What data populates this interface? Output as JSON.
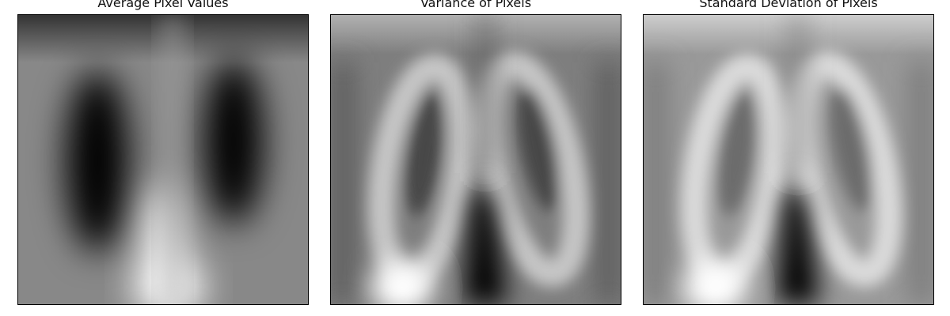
{
  "chart_data": [
    {
      "type": "heatmap",
      "title": "Average Pixel Values",
      "xlabel": "",
      "ylabel": "",
      "colormap": "gray",
      "axes_visible": false,
      "grid": false,
      "description_values": {
        "dark_lobes": 2,
        "bright_region": "bottom-center"
      }
    },
    {
      "type": "heatmap",
      "title": "Variance of Pixels",
      "xlabel": "",
      "ylabel": "",
      "colormap": "gray",
      "axes_visible": false,
      "grid": false
    },
    {
      "type": "heatmap",
      "title": "Standard Deviation of Pixels",
      "xlabel": "",
      "ylabel": "",
      "colormap": "gray",
      "axes_visible": false,
      "grid": false
    }
  ],
  "colors": {
    "frame": "#000000",
    "background": "#ffffff",
    "mean_base": "#888888",
    "var_base": "#8c8c8c",
    "std_base": "#a4a4a4"
  }
}
